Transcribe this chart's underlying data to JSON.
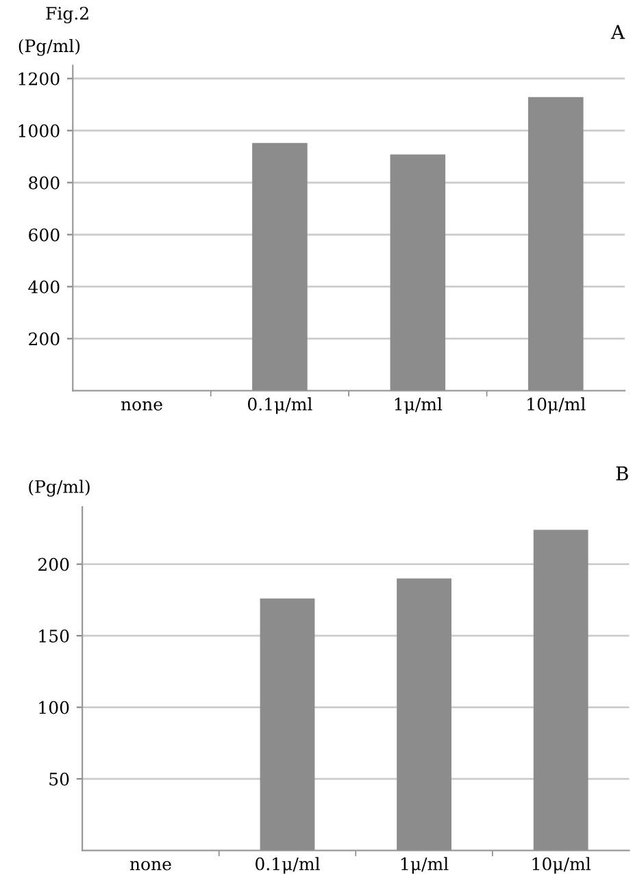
{
  "chart_data": [
    {
      "type": "bar",
      "title": "A",
      "annotations": [
        "Fig.2"
      ],
      "ylabel": "(Pg/ml)",
      "categories": [
        "none",
        "0.1μ/ml",
        "1μ/ml",
        "10μ/ml"
      ],
      "values": [
        0,
        952,
        908,
        1129
      ],
      "color": "#8c8c8c",
      "ylim": [
        0,
        1250
      ],
      "yticks": [
        200,
        400,
        600,
        800,
        1000,
        1200
      ],
      "grid": "y"
    },
    {
      "type": "bar",
      "title": "B",
      "ylabel": "(Pg/ml)",
      "categories": [
        "none",
        "0.1μ/ml",
        "1μ/ml",
        "10μ/ml"
      ],
      "values": [
        0,
        176,
        190,
        224
      ],
      "color": "#8c8c8c",
      "ylim": [
        0,
        240
      ],
      "yticks": [
        50,
        100,
        150,
        200
      ],
      "grid": "y"
    }
  ]
}
